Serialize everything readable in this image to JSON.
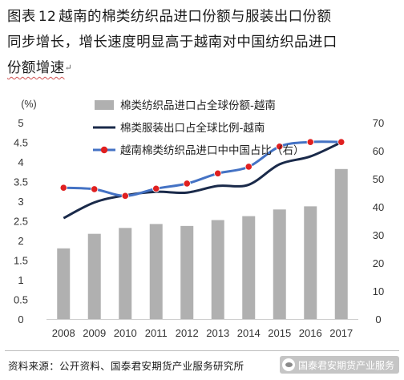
{
  "caption": {
    "prefix": "图表",
    "number": "12",
    "line1_rest": "越南的棉类纺织品进口份额与服装出口份额",
    "line2": "同步增长，增长速度明显高于越南对中国纺织品进口",
    "line3_squiggle": "份额增速"
  },
  "source": {
    "text": "资料来源：公开资料、国泰君安期货产业服务研究所"
  },
  "watermark": {
    "text": "国泰君安期货产业服务"
  },
  "colors": {
    "bar": "#b0b0b0",
    "line_export": "#1a2a4a",
    "line_china": "#4472c4",
    "marker": "#e02020"
  },
  "chart_data": {
    "type": "bar",
    "categories": [
      "2008",
      "2009",
      "2010",
      "2011",
      "2012",
      "2013",
      "2014",
      "2015",
      "2016",
      "2017"
    ],
    "left_axis": {
      "unit_label": "(%)",
      "ylim": [
        0,
        5
      ],
      "ticks": [
        "0",
        "0.5",
        "1",
        "1.5",
        "2",
        "2.5",
        "3",
        "3.5",
        "4",
        "4.5",
        "5"
      ]
    },
    "right_axis": {
      "ylim": [
        0,
        70
      ],
      "ticks": [
        "0",
        "10",
        "20",
        "30",
        "40",
        "50",
        "60",
        "70"
      ]
    },
    "grid": false,
    "legend_position": "top-left",
    "series": [
      {
        "name": "棉类纺织品进口占全球份额-越南",
        "kind": "bar",
        "axis": "left",
        "values": [
          1.8,
          2.17,
          2.32,
          2.42,
          2.37,
          2.52,
          2.62,
          2.79,
          2.87,
          3.82
        ]
      },
      {
        "name": "棉类服装出口占全球比例-越南",
        "kind": "line",
        "axis": "left",
        "values": [
          2.57,
          2.97,
          3.15,
          3.24,
          3.22,
          3.39,
          3.42,
          3.94,
          4.14,
          4.5
        ]
      },
      {
        "name": "越南棉类纺织品进口中中国占比（右）",
        "kind": "line-marker",
        "axis": "right",
        "values": [
          46.8,
          46.3,
          43.9,
          46.5,
          48.3,
          51.9,
          54.3,
          61.5,
          63.1,
          63.1
        ]
      }
    ]
  }
}
